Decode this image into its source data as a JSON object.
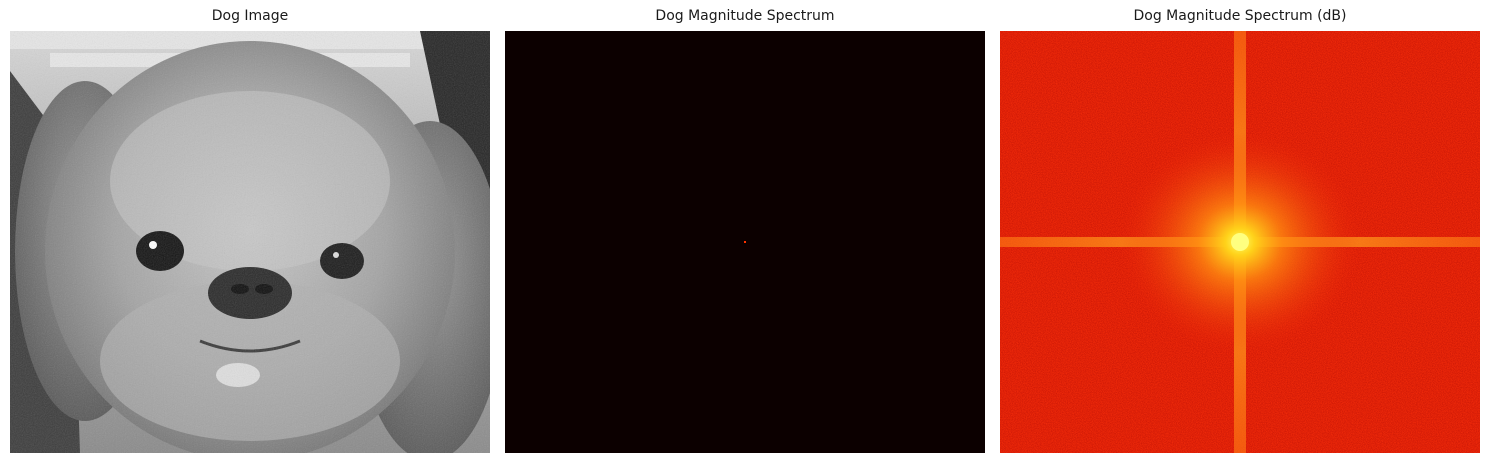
{
  "figure": {
    "panels": [
      {
        "title": "Dog Image",
        "image": "grayscale photograph of a small long-haired dog, front-facing close-up",
        "colormap": "gray"
      },
      {
        "title": "Dog Magnitude Spectrum",
        "image": "nearly black magnitude spectrum with a single bright point at the centre",
        "colormap": "hot",
        "colors": {
          "background": "#0c0000",
          "peak": "#ff3300"
        }
      },
      {
        "title": "Dog Magnitude Spectrum (dB)",
        "image": "log-scaled magnitude spectrum: red field with orange horizontal and vertical cross through a bright yellow centre",
        "colormap": "hot",
        "colors": {
          "field": "#f02a0a",
          "cross": "#ff8c1a",
          "centre": "#ffff66"
        }
      }
    ]
  }
}
